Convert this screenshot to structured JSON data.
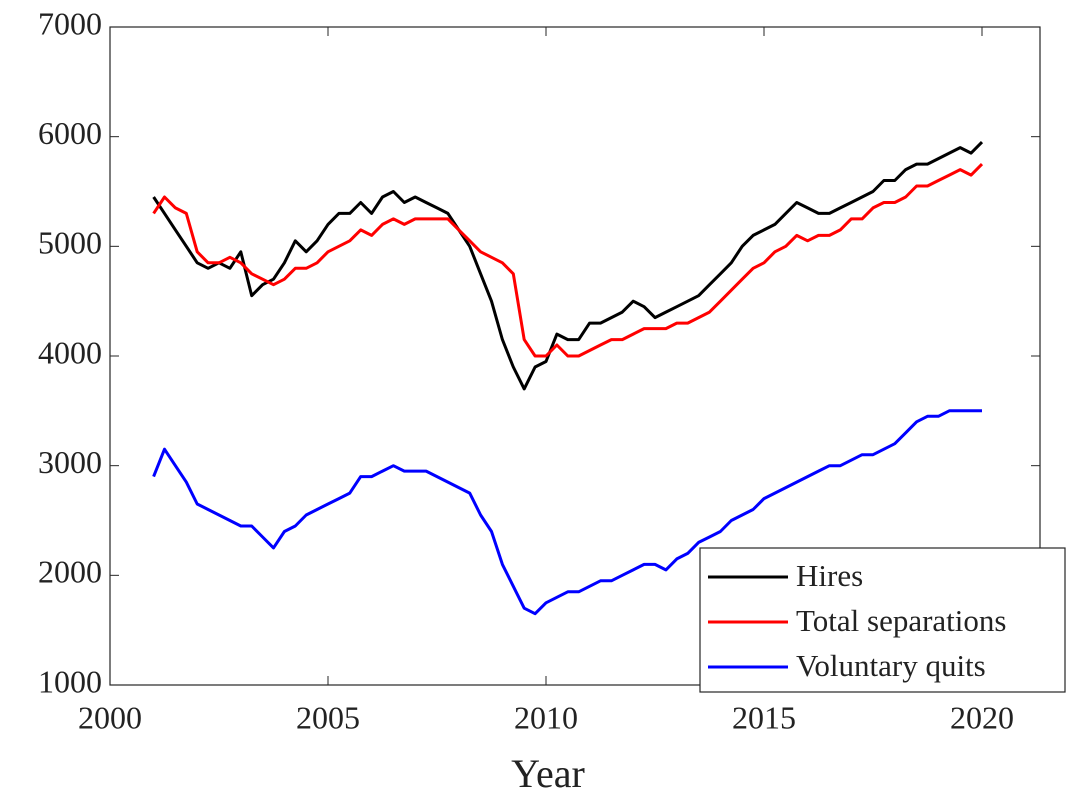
{
  "chart_data": {
    "type": "line",
    "xlabel": "Year",
    "x": [
      2001,
      2001.25,
      2001.5,
      2001.75,
      2002,
      2002.25,
      2002.5,
      2002.75,
      2003,
      2003.25,
      2003.5,
      2003.75,
      2004,
      2004.25,
      2004.5,
      2004.75,
      2005,
      2005.25,
      2005.5,
      2005.75,
      2006,
      2006.25,
      2006.5,
      2006.75,
      2007,
      2007.25,
      2007.5,
      2007.75,
      2008,
      2008.25,
      2008.5,
      2008.75,
      2009,
      2009.25,
      2009.5,
      2009.75,
      2010,
      2010.25,
      2010.5,
      2010.75,
      2011,
      2011.25,
      2011.5,
      2011.75,
      2012,
      2012.25,
      2012.5,
      2012.75,
      2013,
      2013.25,
      2013.5,
      2013.75,
      2014,
      2014.25,
      2014.5,
      2014.75,
      2015,
      2015.25,
      2015.5,
      2015.75,
      2016,
      2016.25,
      2016.5,
      2016.75,
      2017,
      2017.25,
      2017.5,
      2017.75,
      2018,
      2018.25,
      2018.5,
      2018.75,
      2019,
      2019.25,
      2019.5,
      2019.75,
      2020
    ],
    "series": [
      {
        "name": "Hires",
        "color": "#000000",
        "values": [
          5450,
          5300,
          5150,
          5000,
          4850,
          4800,
          4850,
          4800,
          4950,
          4550,
          4650,
          4700,
          4850,
          5050,
          4950,
          5050,
          5200,
          5300,
          5300,
          5400,
          5300,
          5450,
          5500,
          5400,
          5450,
          5400,
          5350,
          5300,
          5150,
          5000,
          4750,
          4500,
          4150,
          3900,
          3700,
          3900,
          3950,
          4200,
          4150,
          4150,
          4300,
          4300,
          4350,
          4400,
          4500,
          4450,
          4350,
          4400,
          4450,
          4500,
          4550,
          4650,
          4750,
          4850,
          5000,
          5100,
          5150,
          5200,
          5300,
          5400,
          5350,
          5300,
          5300,
          5350,
          5400,
          5450,
          5500,
          5600,
          5600,
          5700,
          5750,
          5750,
          5800,
          5850,
          5900,
          5850,
          5950
        ]
      },
      {
        "name": "Total separations",
        "color": "#ff0000",
        "values": [
          5300,
          5450,
          5350,
          5300,
          4950,
          4850,
          4850,
          4900,
          4850,
          4750,
          4700,
          4650,
          4700,
          4800,
          4800,
          4850,
          4950,
          5000,
          5050,
          5150,
          5100,
          5200,
          5250,
          5200,
          5250,
          5250,
          5250,
          5250,
          5150,
          5050,
          4950,
          4900,
          4850,
          4750,
          4150,
          4000,
          4000,
          4100,
          4000,
          4000,
          4050,
          4100,
          4150,
          4150,
          4200,
          4250,
          4250,
          4250,
          4300,
          4300,
          4350,
          4400,
          4500,
          4600,
          4700,
          4800,
          4850,
          4950,
          5000,
          5100,
          5050,
          5100,
          5100,
          5150,
          5250,
          5250,
          5350,
          5400,
          5400,
          5450,
          5550,
          5550,
          5600,
          5650,
          5700,
          5650,
          5750
        ]
      },
      {
        "name": "Voluntary quits",
        "color": "#0000ff",
        "values": [
          2900,
          3150,
          3000,
          2850,
          2650,
          2600,
          2550,
          2500,
          2450,
          2450,
          2350,
          2250,
          2400,
          2450,
          2550,
          2600,
          2650,
          2700,
          2750,
          2900,
          2900,
          2950,
          3000,
          2950,
          2950,
          2950,
          2900,
          2850,
          2800,
          2750,
          2550,
          2400,
          2100,
          1900,
          1700,
          1650,
          1750,
          1800,
          1850,
          1850,
          1900,
          1950,
          1950,
          2000,
          2050,
          2100,
          2100,
          2050,
          2150,
          2200,
          2300,
          2350,
          2400,
          2500,
          2550,
          2600,
          2700,
          2750,
          2800,
          2850,
          2900,
          2950,
          3000,
          3000,
          3050,
          3100,
          3100,
          3150,
          3200,
          3300,
          3400,
          3450,
          3450,
          3500,
          3500,
          3500,
          3500
        ]
      }
    ],
    "xlim": [
      2000,
      2021.33
    ],
    "xticks": [
      2000,
      2005,
      2010,
      2015,
      2020
    ],
    "ylim": [
      1000,
      7000
    ],
    "yticks": [
      1000,
      2000,
      3000,
      4000,
      5000,
      6000,
      7000
    ],
    "grid": false,
    "legend": "southeast"
  }
}
